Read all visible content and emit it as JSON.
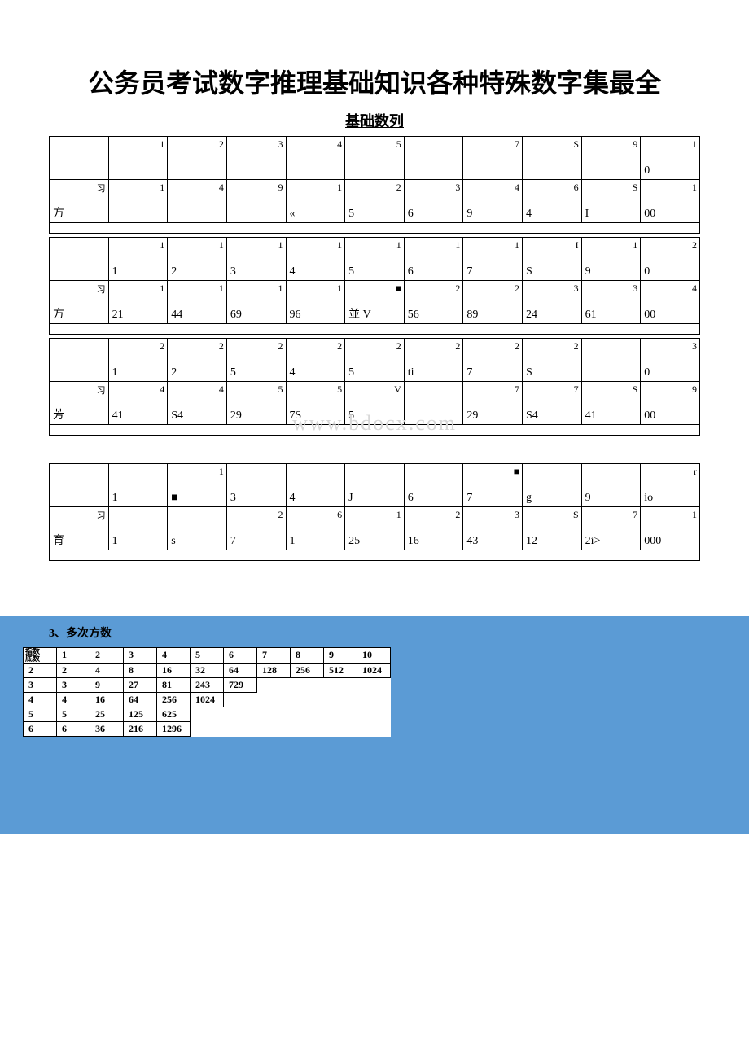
{
  "title": "公务员考试数字推理基础知识各种特殊数字集最全",
  "subtitle": "基础数列",
  "colors": {
    "page_bg": "#ffffff",
    "border": "#000000",
    "bluepanel_bg": "#5b9bd5",
    "watermark": "#d8d8d8"
  },
  "watermark": "www.bdocx.com",
  "table1": {
    "rows": [
      {
        "label_corner": "",
        "label_main": "",
        "cells": [
          {
            "c": "1",
            "m": ""
          },
          {
            "c": "2",
            "m": ""
          },
          {
            "c": "3",
            "m": ""
          },
          {
            "c": "4",
            "m": ""
          },
          {
            "c": "5",
            "m": ""
          },
          {
            "c": "",
            "m": ""
          },
          {
            "c": "7",
            "m": ""
          },
          {
            "c": "$",
            "m": ""
          },
          {
            "c": "9",
            "m": ""
          },
          {
            "c": "1",
            "m": "0"
          }
        ]
      },
      {
        "label_corner": "习",
        "label_main": "方",
        "cells": [
          {
            "c": "1",
            "m": ""
          },
          {
            "c": "4",
            "m": ""
          },
          {
            "c": "9",
            "m": ""
          },
          {
            "c": "1",
            "m": "«"
          },
          {
            "c": "2",
            "m": "5"
          },
          {
            "c": "3",
            "m": "6"
          },
          {
            "c": "4",
            "m": "9"
          },
          {
            "c": "6",
            "m": "4"
          },
          {
            "c": "S",
            "m": "I"
          },
          {
            "c": "1",
            "m": "00"
          }
        ]
      }
    ],
    "gap": true,
    "rows2": [
      {
        "label_corner": "",
        "label_main": "",
        "cells": [
          {
            "c": "1",
            "m": "1"
          },
          {
            "c": "1",
            "m": "2"
          },
          {
            "c": "1",
            "m": "3"
          },
          {
            "c": "1",
            "m": "4"
          },
          {
            "c": "1",
            "m": "5"
          },
          {
            "c": "1",
            "m": "6"
          },
          {
            "c": "1",
            "m": "7"
          },
          {
            "c": "I",
            "m": "S"
          },
          {
            "c": "1",
            "m": "9"
          },
          {
            "c": "2",
            "m": "0"
          }
        ]
      },
      {
        "label_corner": "习",
        "label_main": "方",
        "cells": [
          {
            "c": "1",
            "m": "21"
          },
          {
            "c": "1",
            "m": "44"
          },
          {
            "c": "1",
            "m": "69"
          },
          {
            "c": "1",
            "m": "96"
          },
          {
            "c": "■",
            "m": "並 V"
          },
          {
            "c": "2",
            "m": "56"
          },
          {
            "c": "2",
            "m": "89"
          },
          {
            "c": "3",
            "m": "24"
          },
          {
            "c": "3",
            "m": "61"
          },
          {
            "c": "4",
            "m": "00"
          }
        ]
      }
    ],
    "gap2": true,
    "rows3": [
      {
        "label_corner": "",
        "label_main": "",
        "cells": [
          {
            "c": "2",
            "m": "1"
          },
          {
            "c": "2",
            "m": "2"
          },
          {
            "c": "2",
            "m": "5"
          },
          {
            "c": "2",
            "m": "4"
          },
          {
            "c": "2",
            "m": "5"
          },
          {
            "c": "2",
            "m": "ti"
          },
          {
            "c": "2",
            "m": "7"
          },
          {
            "c": "2",
            "m": "S"
          },
          {
            "c": "",
            "m": ""
          },
          {
            "c": "3",
            "m": "0"
          }
        ]
      },
      {
        "label_corner": "习",
        "label_main": "芳",
        "cells": [
          {
            "c": "4",
            "m": "41"
          },
          {
            "c": "4",
            "m": "S4"
          },
          {
            "c": "5",
            "m": "29"
          },
          {
            "c": "5",
            "m": "7S"
          },
          {
            "c": "V",
            "m": "5"
          },
          {
            "c": "",
            "m": ""
          },
          {
            "c": "7",
            "m": "29"
          },
          {
            "c": "7",
            "m": "S4"
          },
          {
            "c": "S",
            "m": "41"
          },
          {
            "c": "9",
            "m": "00"
          }
        ]
      }
    ]
  },
  "table2": {
    "rows": [
      {
        "label_corner": "",
        "label_main": "",
        "cells": [
          {
            "c": "",
            "m": "1"
          },
          {
            "c": "1",
            "m": "■"
          },
          {
            "c": "",
            "m": "3"
          },
          {
            "c": "",
            "m": "4"
          },
          {
            "c": "",
            "m": "J"
          },
          {
            "c": "",
            "m": "6"
          },
          {
            "c": "■",
            "m": "7"
          },
          {
            "c": "",
            "m": "g"
          },
          {
            "c": "",
            "m": "9"
          },
          {
            "c": "r",
            "m": "io"
          }
        ]
      },
      {
        "label_corner": "习",
        "label_main": "育",
        "cells": [
          {
            "c": "",
            "m": "1"
          },
          {
            "c": "",
            "m": "s"
          },
          {
            "c": "2",
            "m": "7"
          },
          {
            "c": "6",
            "m": "1"
          },
          {
            "c": "1",
            "m": "25"
          },
          {
            "c": "2",
            "m": "16"
          },
          {
            "c": "3",
            "m": "43"
          },
          {
            "c": "S",
            "m": "12"
          },
          {
            "c": "7",
            "m": "2i>"
          },
          {
            "c": "1",
            "m": "000"
          }
        ]
      }
    ]
  },
  "powers_section": {
    "title": "3、多次方数",
    "diag_top": "指数",
    "diag_bottom": "底数",
    "header": [
      "1",
      "2",
      "3",
      "4",
      "5",
      "6",
      "7",
      "8",
      "9",
      "10"
    ],
    "rows": [
      {
        "base": "2",
        "vals": [
          "2",
          "4",
          "8",
          "16",
          "32",
          "64",
          "128",
          "256",
          "512",
          "1024"
        ]
      },
      {
        "base": "3",
        "vals": [
          "3",
          "9",
          "27",
          "81",
          "243",
          "729",
          "",
          "",
          "",
          ""
        ]
      },
      {
        "base": "4",
        "vals": [
          "4",
          "16",
          "64",
          "256",
          "1024",
          "",
          "",
          "",
          "",
          ""
        ]
      },
      {
        "base": "5",
        "vals": [
          "5",
          "25",
          "125",
          "625",
          "",
          "",
          "",
          "",
          "",
          ""
        ]
      },
      {
        "base": "6",
        "vals": [
          "6",
          "36",
          "216",
          "1296",
          "",
          "",
          "",
          "",
          "",
          ""
        ]
      }
    ]
  }
}
